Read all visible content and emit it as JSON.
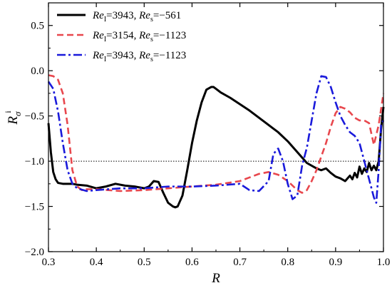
{
  "chart_data": {
    "type": "line",
    "xlabel": "R",
    "ylabel": {
      "main": "R",
      "sub": "σ",
      "sup": "i"
    },
    "xlim": [
      0.3,
      1.0
    ],
    "ylim": [
      -2.0,
      0.75
    ],
    "x_ticks": [
      0.3,
      0.4,
      0.5,
      0.6,
      0.7,
      0.8,
      0.9,
      1.0
    ],
    "x_tick_labels": [
      "0.3",
      "0.4",
      "0.5",
      "0.6",
      "0.7",
      "0.8",
      "0.9",
      "1.0"
    ],
    "y_ticks": [
      -2.0,
      -1.5,
      -1.0,
      -0.5,
      0.0,
      0.5
    ],
    "y_tick_labels": [
      "−2.0",
      "−1.5",
      "−1.0",
      "−0.5",
      "0.0",
      "0.5"
    ],
    "reference_line": {
      "y": -1.0,
      "style": "dotted",
      "color": "#000000"
    },
    "legend": {
      "placement": "top-left"
    },
    "series": [
      {
        "name": "Re_I=3943, Re_s=−561",
        "label_parts": {
          "a": "Re",
          "a_sub": "I",
          "a_val": "=3943, ",
          "b": "Re",
          "b_sub": "s",
          "b_val": "=−561"
        },
        "color": "#000000",
        "dash": "solid",
        "x": [
          0.3,
          0.305,
          0.31,
          0.315,
          0.32,
          0.33,
          0.34,
          0.35,
          0.36,
          0.38,
          0.4,
          0.42,
          0.44,
          0.46,
          0.48,
          0.5,
          0.51,
          0.52,
          0.53,
          0.54,
          0.55,
          0.56,
          0.565,
          0.57,
          0.58,
          0.59,
          0.6,
          0.61,
          0.62,
          0.63,
          0.64,
          0.645,
          0.65,
          0.66,
          0.68,
          0.7,
          0.72,
          0.74,
          0.76,
          0.78,
          0.8,
          0.82,
          0.84,
          0.86,
          0.87,
          0.88,
          0.89,
          0.9,
          0.91,
          0.92,
          0.93,
          0.935,
          0.94,
          0.945,
          0.95,
          0.955,
          0.96,
          0.965,
          0.97,
          0.975,
          0.98,
          0.985,
          0.99,
          0.995,
          1.0
        ],
        "y": [
          -0.58,
          -0.9,
          -1.12,
          -1.2,
          -1.24,
          -1.25,
          -1.25,
          -1.25,
          -1.26,
          -1.27,
          -1.3,
          -1.28,
          -1.25,
          -1.27,
          -1.28,
          -1.3,
          -1.28,
          -1.22,
          -1.23,
          -1.35,
          -1.46,
          -1.5,
          -1.51,
          -1.5,
          -1.38,
          -1.1,
          -0.8,
          -0.55,
          -0.35,
          -0.21,
          -0.18,
          -0.18,
          -0.2,
          -0.24,
          -0.3,
          -0.37,
          -0.44,
          -0.52,
          -0.6,
          -0.68,
          -0.78,
          -0.9,
          -1.02,
          -1.08,
          -1.1,
          -1.08,
          -1.13,
          -1.17,
          -1.19,
          -1.22,
          -1.16,
          -1.2,
          -1.13,
          -1.18,
          -1.06,
          -1.14,
          -1.08,
          -1.12,
          -1.02,
          -1.1,
          -1.05,
          -1.1,
          -1.0,
          -0.65,
          -0.4
        ]
      },
      {
        "name": "Re_I=3154, Re_s=−1123",
        "label_parts": {
          "a": "Re",
          "a_sub": "I",
          "a_val": "=3154, ",
          "b": "Re",
          "b_sub": "s",
          "b_val": "=−1123"
        },
        "color": "#e8474d",
        "dash": "dashed",
        "x": [
          0.3,
          0.31,
          0.32,
          0.33,
          0.34,
          0.35,
          0.36,
          0.37,
          0.38,
          0.4,
          0.45,
          0.5,
          0.55,
          0.6,
          0.65,
          0.7,
          0.72,
          0.74,
          0.76,
          0.78,
          0.8,
          0.82,
          0.83,
          0.84,
          0.85,
          0.86,
          0.87,
          0.88,
          0.89,
          0.9,
          0.91,
          0.92,
          0.93,
          0.94,
          0.95,
          0.96,
          0.97,
          0.98,
          0.99,
          1.0
        ],
        "y": [
          -0.05,
          -0.06,
          -0.1,
          -0.25,
          -0.6,
          -1.1,
          -1.28,
          -1.32,
          -1.31,
          -1.31,
          -1.33,
          -1.32,
          -1.3,
          -1.28,
          -1.26,
          -1.22,
          -1.18,
          -1.14,
          -1.12,
          -1.15,
          -1.22,
          -1.32,
          -1.35,
          -1.32,
          -1.22,
          -1.1,
          -0.95,
          -0.8,
          -0.62,
          -0.47,
          -0.4,
          -0.42,
          -0.46,
          -0.52,
          -0.55,
          -0.55,
          -0.58,
          -0.82,
          -0.6,
          -0.25
        ]
      },
      {
        "name": "Re_I=3943, Re_s=−1123",
        "label_parts": {
          "a": "Re",
          "a_sub": "I",
          "a_val": "=3943, ",
          "b": "Re",
          "b_sub": "s",
          "b_val": "=−1123"
        },
        "color": "#1a1adb",
        "dash": "dashdot",
        "x": [
          0.3,
          0.31,
          0.32,
          0.33,
          0.34,
          0.35,
          0.36,
          0.38,
          0.4,
          0.45,
          0.5,
          0.55,
          0.6,
          0.65,
          0.7,
          0.72,
          0.74,
          0.76,
          0.77,
          0.78,
          0.79,
          0.8,
          0.81,
          0.82,
          0.83,
          0.84,
          0.85,
          0.86,
          0.87,
          0.88,
          0.89,
          0.9,
          0.91,
          0.92,
          0.93,
          0.94,
          0.95,
          0.96,
          0.97,
          0.98,
          0.985,
          0.99,
          0.995,
          1.0
        ],
        "y": [
          -0.12,
          -0.2,
          -0.45,
          -0.8,
          -1.1,
          -1.25,
          -1.3,
          -1.33,
          -1.32,
          -1.3,
          -1.3,
          -1.28,
          -1.28,
          -1.27,
          -1.25,
          -1.32,
          -1.33,
          -1.22,
          -0.92,
          -0.86,
          -1.0,
          -1.25,
          -1.42,
          -1.38,
          -1.05,
          -0.85,
          -0.55,
          -0.25,
          -0.06,
          -0.07,
          -0.18,
          -0.35,
          -0.5,
          -0.6,
          -0.68,
          -0.72,
          -0.8,
          -1.0,
          -1.2,
          -1.4,
          -1.46,
          -1.1,
          -0.6,
          -0.55
        ]
      }
    ]
  }
}
